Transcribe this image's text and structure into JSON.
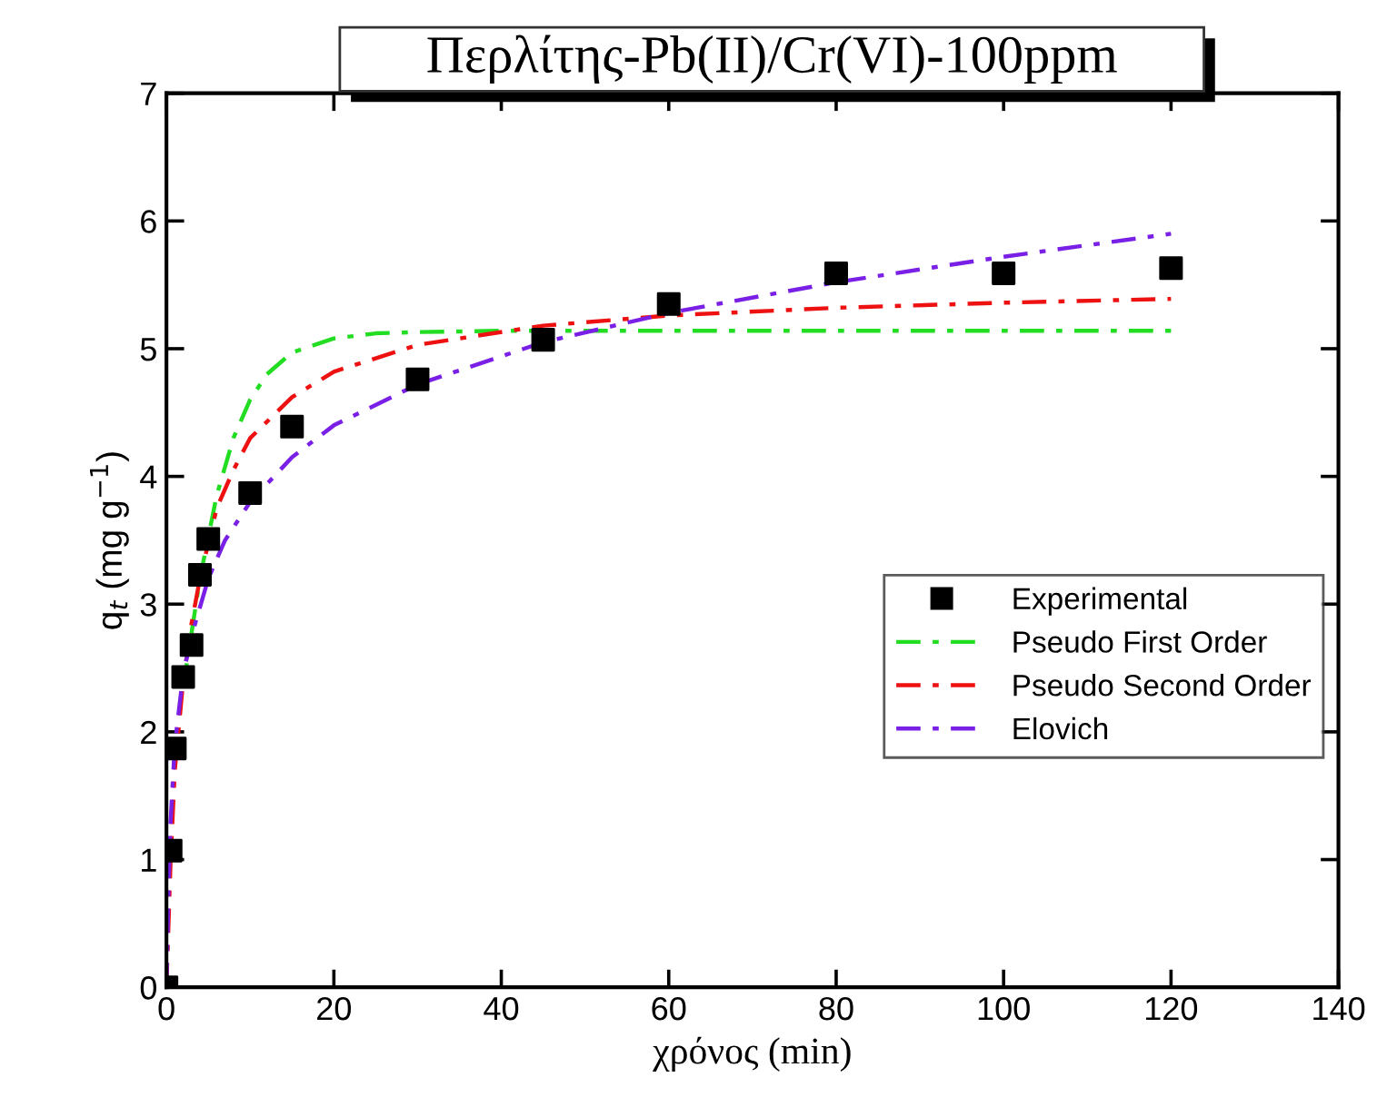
{
  "chart_data": {
    "type": "scatter",
    "title": "Περλίτης-Pb(II)/Cr(VI)-100ppm",
    "xlabel": "χρόνος (min)",
    "ylabel": "q$_{t}$ (mg g$^{−1}$)",
    "xlim": [
      0,
      140
    ],
    "ylim": [
      0,
      7
    ],
    "xticks": [
      0,
      20,
      40,
      60,
      80,
      100,
      120,
      140
    ],
    "yticks": [
      0,
      1,
      2,
      3,
      4,
      5,
      6,
      7
    ],
    "grid": false,
    "legend": "right",
    "series": [
      {
        "name": "Experimental",
        "marker": "square",
        "color": "#000000",
        "x": [
          0,
          0.5,
          1,
          2,
          3,
          4,
          5,
          10,
          15,
          30,
          45,
          60,
          80,
          100,
          120
        ],
        "values": [
          0,
          1.07,
          1.87,
          2.43,
          2.68,
          3.23,
          3.51,
          3.87,
          4.39,
          4.76,
          5.07,
          5.35,
          5.59,
          5.59,
          5.63
        ]
      },
      {
        "name": "Pseudo First Order",
        "type": "line",
        "line_style": "dashed",
        "color": "#22dd22",
        "x": [
          2,
          4,
          6,
          8,
          10,
          12,
          15,
          20,
          25,
          30,
          40,
          60,
          80,
          100,
          120
        ],
        "values": [
          2.35,
          3.2,
          3.85,
          4.3,
          4.6,
          4.8,
          4.97,
          5.08,
          5.12,
          5.13,
          5.14,
          5.14,
          5.14,
          5.14,
          5.14
        ]
      },
      {
        "name": "Pseudo Second Order",
        "type": "line",
        "line_style": "dashed",
        "color": "#ee1111",
        "x": [
          0,
          0.5,
          1,
          2,
          3,
          4,
          6,
          8,
          10,
          15,
          20,
          30,
          45,
          60,
          80,
          100,
          120
        ],
        "values": [
          0,
          1.0,
          1.7,
          2.4,
          2.85,
          3.2,
          3.75,
          4.05,
          4.3,
          4.62,
          4.82,
          5.03,
          5.18,
          5.26,
          5.32,
          5.36,
          5.39
        ]
      },
      {
        "name": "Elovich",
        "type": "line",
        "line_style": "dashed",
        "color": "#7a1fe6",
        "x": [
          0,
          0.3,
          0.5,
          1,
          2,
          3,
          5,
          7,
          10,
          15,
          20,
          30,
          45,
          60,
          80,
          100,
          120
        ],
        "values": [
          0,
          0.9,
          1.3,
          1.9,
          2.45,
          2.75,
          3.2,
          3.5,
          3.8,
          4.15,
          4.4,
          4.72,
          5.05,
          5.28,
          5.52,
          5.72,
          5.9
        ]
      }
    ]
  }
}
